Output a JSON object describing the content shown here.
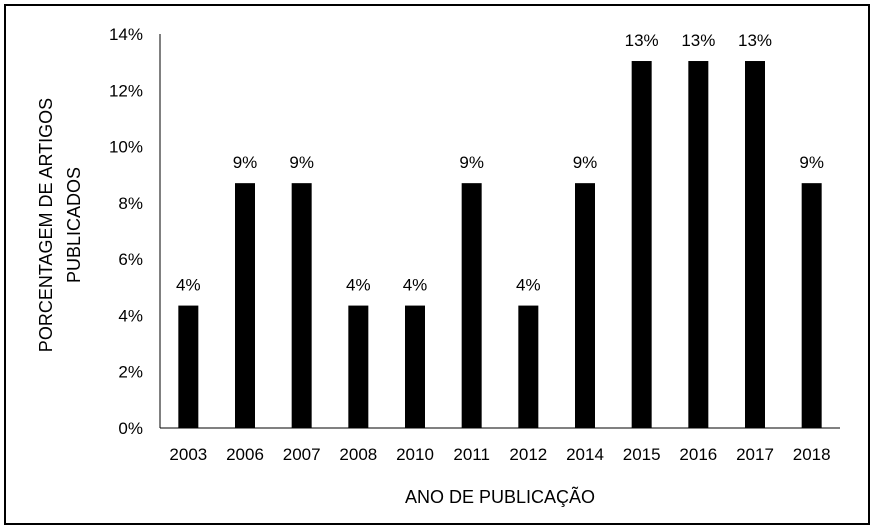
{
  "chart_data": {
    "type": "bar",
    "categories": [
      "2003",
      "2006",
      "2007",
      "2008",
      "2010",
      "2011",
      "2012",
      "2014",
      "2015",
      "2016",
      "2017",
      "2018"
    ],
    "values": [
      4.35,
      8.7,
      8.7,
      4.35,
      4.35,
      8.7,
      4.35,
      8.7,
      13.04,
      13.04,
      13.04,
      8.7
    ],
    "data_labels": [
      "4%",
      "9%",
      "9%",
      "4%",
      "4%",
      "9%",
      "4%",
      "9%",
      "13%",
      "13%",
      "13%",
      "9%"
    ],
    "xlabel": "ANO DE PUBLICAÇÃO",
    "ylabel_lines": [
      "PORCENTAGEM DE ARTIGOS",
      "PUBLICADOS"
    ],
    "ylim": [
      0,
      14
    ],
    "yticks": [
      0,
      2,
      4,
      6,
      8,
      10,
      12,
      14
    ],
    "ytick_labels": [
      "0%",
      "2%",
      "4%",
      "6%",
      "8%",
      "10%",
      "12%",
      "14%"
    ],
    "bar_color": "#000000",
    "grid": false,
    "legend": false
  }
}
